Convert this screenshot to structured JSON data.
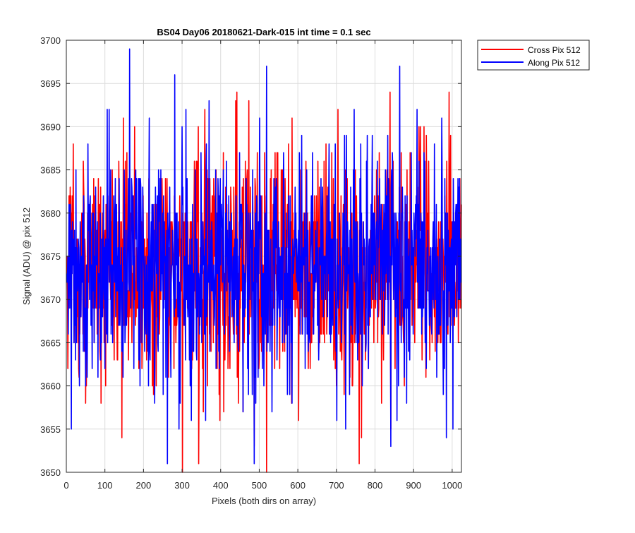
{
  "chart_data": {
    "type": "line",
    "title": "BS04 Day06 20180621-Dark-015 int time = 0.1 sec",
    "xlabel": "Pixels (both dirs on array)",
    "ylabel": "Signal (ADU) @ pix 512",
    "xlim": [
      0,
      1024
    ],
    "ylim": [
      3650,
      3700
    ],
    "xticks": [
      0,
      100,
      200,
      300,
      400,
      500,
      600,
      700,
      800,
      900,
      1000
    ],
    "yticks": [
      3650,
      3655,
      3660,
      3665,
      3670,
      3675,
      3680,
      3685,
      3690,
      3695,
      3700
    ],
    "grid": true,
    "legend_position": "top-right outside",
    "x": "pixel index 1..1024",
    "series": [
      {
        "name": "Cross Pix 512",
        "color": "#ff0000",
        "mean": 3673.5,
        "min": 3650,
        "max": 3694
      },
      {
        "name": "Along Pix 512",
        "color": "#0000ff",
        "mean": 3673.5,
        "min": 3651,
        "max": 3699
      }
    ]
  }
}
